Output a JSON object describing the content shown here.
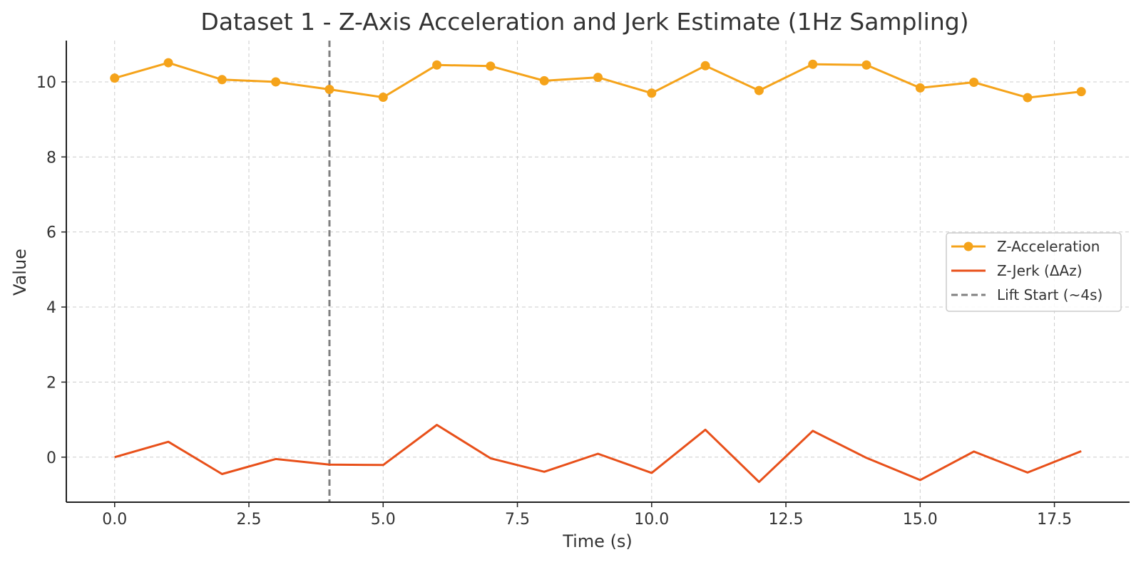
{
  "chart_data": {
    "type": "line",
    "title": "Dataset 1 - Z-Axis Acceleration and Jerk Estimate (1Hz Sampling)",
    "xlabel": "Time (s)",
    "ylabel": "Value",
    "xlim": [
      -0.9,
      18.9
    ],
    "ylim": [
      -1.2,
      11.1
    ],
    "xticks": [
      0.0,
      2.5,
      5.0,
      7.5,
      10.0,
      12.5,
      15.0,
      17.5
    ],
    "xtick_labels": [
      "0.0",
      "2.5",
      "5.0",
      "7.5",
      "10.0",
      "12.5",
      "15.0",
      "17.5"
    ],
    "yticks": [
      0,
      2,
      4,
      6,
      8,
      10
    ],
    "ytick_labels": [
      "0",
      "2",
      "4",
      "6",
      "8",
      "10"
    ],
    "grid": true,
    "legend_position": "center-right",
    "x": [
      0,
      1,
      2,
      3,
      4,
      5,
      6,
      7,
      8,
      9,
      10,
      11,
      12,
      13,
      14,
      15,
      16,
      17,
      18
    ],
    "series": [
      {
        "name": "Z-Acceleration",
        "color": "#f5a31a",
        "marker": "circle",
        "style": "solid",
        "values": [
          10.1,
          10.51,
          10.06,
          10.0,
          9.8,
          9.59,
          10.45,
          10.42,
          10.03,
          10.12,
          9.7,
          10.43,
          9.77,
          10.47,
          10.45,
          9.84,
          9.99,
          9.58,
          9.74
        ]
      },
      {
        "name": "Z-Jerk (ΔAz)",
        "color": "#e8501a",
        "marker": "none",
        "style": "solid",
        "values": [
          0.0,
          0.41,
          -0.45,
          -0.05,
          -0.2,
          -0.21,
          0.86,
          -0.03,
          -0.39,
          0.09,
          -0.42,
          0.73,
          -0.66,
          0.7,
          -0.02,
          -0.61,
          0.15,
          -0.41,
          0.16
        ]
      }
    ],
    "annotations": [
      {
        "type": "vline",
        "x": 4,
        "name": "Lift Start (~4s)",
        "color": "#808080",
        "style": "dashed"
      }
    ]
  }
}
